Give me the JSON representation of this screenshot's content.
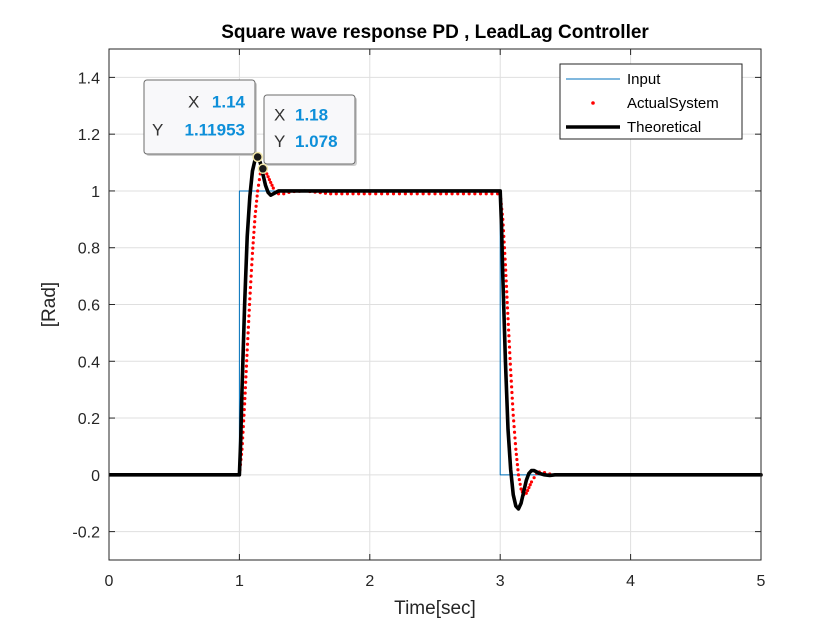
{
  "chart_data": {
    "type": "line",
    "title": "Square wave response PD , LeadLag Controller",
    "xlabel": "Time[sec]",
    "ylabel": "[Rad]",
    "xlim": [
      0,
      5
    ],
    "ylim": [
      -0.3,
      1.5
    ],
    "xticks": [
      0,
      1,
      2,
      3,
      4,
      5
    ],
    "xtick_labels": [
      "0",
      "1",
      "2",
      "3",
      "4",
      "5"
    ],
    "yticks": [
      -0.2,
      0,
      0.2,
      0.4,
      0.6,
      0.8,
      1,
      1.2,
      1.4
    ],
    "ytick_labels": [
      "-0.2",
      "0",
      "0.2",
      "0.4",
      "0.6",
      "0.8",
      "1",
      "1.2",
      "1.4"
    ],
    "grid": true,
    "legend_position": "top-right",
    "series": [
      {
        "name": "Input",
        "style": "thin-line",
        "color": "#0072bd",
        "x": [
          0,
          1,
          1,
          3,
          3,
          5,
          5
        ],
        "y": [
          0,
          0,
          1,
          1,
          0,
          0,
          1
        ]
      },
      {
        "name": "ActualSystem",
        "style": "dotted",
        "color": "#ff0000",
        "x": [
          0,
          0.98,
          1.0,
          1.02,
          1.04,
          1.06,
          1.08,
          1.1,
          1.12,
          1.14,
          1.16,
          1.18,
          1.2,
          1.22,
          1.24,
          1.26,
          1.28,
          1.3,
          1.34,
          1.38,
          1.42,
          1.5,
          1.7,
          2.0,
          2.5,
          2.98,
          3.0,
          3.02,
          3.04,
          3.06,
          3.08,
          3.1,
          3.12,
          3.14,
          3.16,
          3.18,
          3.2,
          3.22,
          3.24,
          3.26,
          3.28,
          3.3,
          3.34,
          3.38,
          3.42,
          3.5,
          3.7,
          4.0,
          4.5,
          5.0
        ],
        "y": [
          0,
          0,
          0,
          0.09,
          0.25,
          0.44,
          0.62,
          0.78,
          0.91,
          1.0,
          1.06,
          1.078,
          1.07,
          1.05,
          1.03,
          1.01,
          0.995,
          0.99,
          0.99,
          0.995,
          0.998,
          1.0,
          0.99,
          0.99,
          0.99,
          0.99,
          0.99,
          0.9,
          0.74,
          0.55,
          0.37,
          0.21,
          0.09,
          0.0,
          -0.05,
          -0.07,
          -0.065,
          -0.045,
          -0.025,
          -0.01,
          0.005,
          0.01,
          0.008,
          0.003,
          0.0,
          0.0,
          0.0,
          0.0,
          0.0,
          0.0
        ]
      },
      {
        "name": "Theoretical",
        "style": "thick-line",
        "color": "#000000",
        "x": [
          0,
          1.0,
          1.01,
          1.02,
          1.04,
          1.06,
          1.08,
          1.1,
          1.12,
          1.14,
          1.16,
          1.18,
          1.2,
          1.22,
          1.24,
          1.26,
          1.28,
          1.3,
          1.34,
          1.38,
          1.42,
          1.5,
          1.7,
          2.0,
          2.5,
          3.0,
          3.01,
          3.02,
          3.04,
          3.06,
          3.08,
          3.1,
          3.12,
          3.14,
          3.16,
          3.18,
          3.2,
          3.22,
          3.24,
          3.26,
          3.28,
          3.3,
          3.34,
          3.38,
          3.42,
          3.5,
          3.7,
          4.0,
          4.5,
          5.0
        ],
        "y": [
          0,
          0,
          0.12,
          0.3,
          0.6,
          0.84,
          0.98,
          1.07,
          1.11,
          1.1195,
          1.1,
          1.06,
          1.02,
          0.995,
          0.985,
          0.99,
          0.995,
          1.0,
          1.0,
          1.0,
          1.0,
          1.0,
          1.0,
          1.0,
          1.0,
          1.0,
          0.88,
          0.7,
          0.4,
          0.16,
          0.02,
          -0.07,
          -0.11,
          -0.12,
          -0.1,
          -0.06,
          -0.02,
          0.005,
          0.015,
          0.015,
          0.01,
          0.005,
          0.0,
          -0.002,
          0.0,
          0.0,
          0.0,
          0.0,
          0.0,
          0.0
        ]
      }
    ],
    "datatips": [
      {
        "x_key": "X",
        "y_key": "Y",
        "x_value": "1.14",
        "y_value": "1.11953",
        "x": 1.14,
        "y": 1.11953,
        "anchor": "left"
      },
      {
        "x_key": "X",
        "y_key": "Y",
        "x_value": "1.18",
        "y_value": "1.078",
        "x": 1.18,
        "y": 1.078,
        "anchor": "right"
      }
    ]
  }
}
